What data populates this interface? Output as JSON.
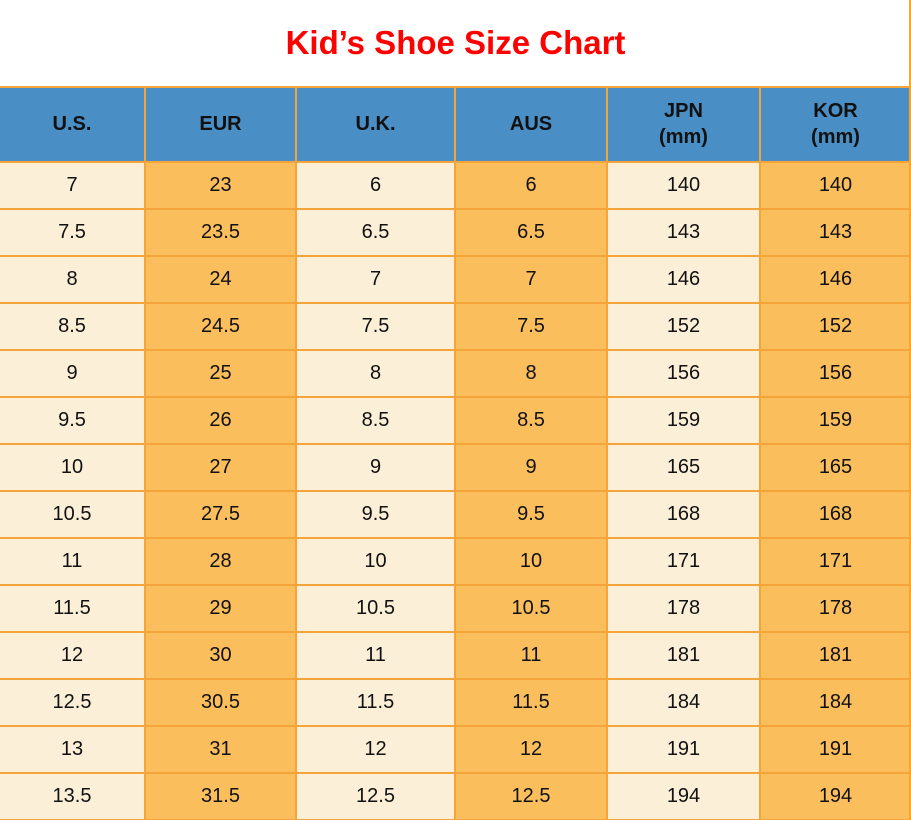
{
  "title": "Kid’s Shoe Size Chart",
  "colors": {
    "title_red": "#fe0000",
    "header_blue": "#4a8ec6",
    "border_orange": "#f5a43a",
    "cell_cream": "#fcefd8",
    "cell_orange": "#fbbe5d"
  },
  "chart_data": {
    "type": "table",
    "title": "Kid’s Shoe Size Chart",
    "columns": [
      {
        "label": "U.S.",
        "sub": ""
      },
      {
        "label": "EUR",
        "sub": ""
      },
      {
        "label": "U.K.",
        "sub": ""
      },
      {
        "label": "AUS",
        "sub": ""
      },
      {
        "label": "JPN",
        "sub": "(mm)"
      },
      {
        "label": "KOR",
        "sub": "(mm)"
      }
    ],
    "rows": [
      [
        "7",
        "23",
        "6",
        "6",
        "140",
        "140"
      ],
      [
        "7.5",
        "23.5",
        "6.5",
        "6.5",
        "143",
        "143"
      ],
      [
        "8",
        "24",
        "7",
        "7",
        "146",
        "146"
      ],
      [
        "8.5",
        "24.5",
        "7.5",
        "7.5",
        "152",
        "152"
      ],
      [
        "9",
        "25",
        "8",
        "8",
        "156",
        "156"
      ],
      [
        "9.5",
        "26",
        "8.5",
        "8.5",
        "159",
        "159"
      ],
      [
        "10",
        "27",
        "9",
        "9",
        "165",
        "165"
      ],
      [
        "10.5",
        "27.5",
        "9.5",
        "9.5",
        "168",
        "168"
      ],
      [
        "11",
        "28",
        "10",
        "10",
        "171",
        "171"
      ],
      [
        "11.5",
        "29",
        "10.5",
        "10.5",
        "178",
        "178"
      ],
      [
        "12",
        "30",
        "11",
        "11",
        "181",
        "181"
      ],
      [
        "12.5",
        "30.5",
        "11.5",
        "11.5",
        "184",
        "184"
      ],
      [
        "13",
        "31",
        "12",
        "12",
        "191",
        "191"
      ],
      [
        "13.5",
        "31.5",
        "12.5",
        "12.5",
        "194",
        "194"
      ]
    ]
  }
}
